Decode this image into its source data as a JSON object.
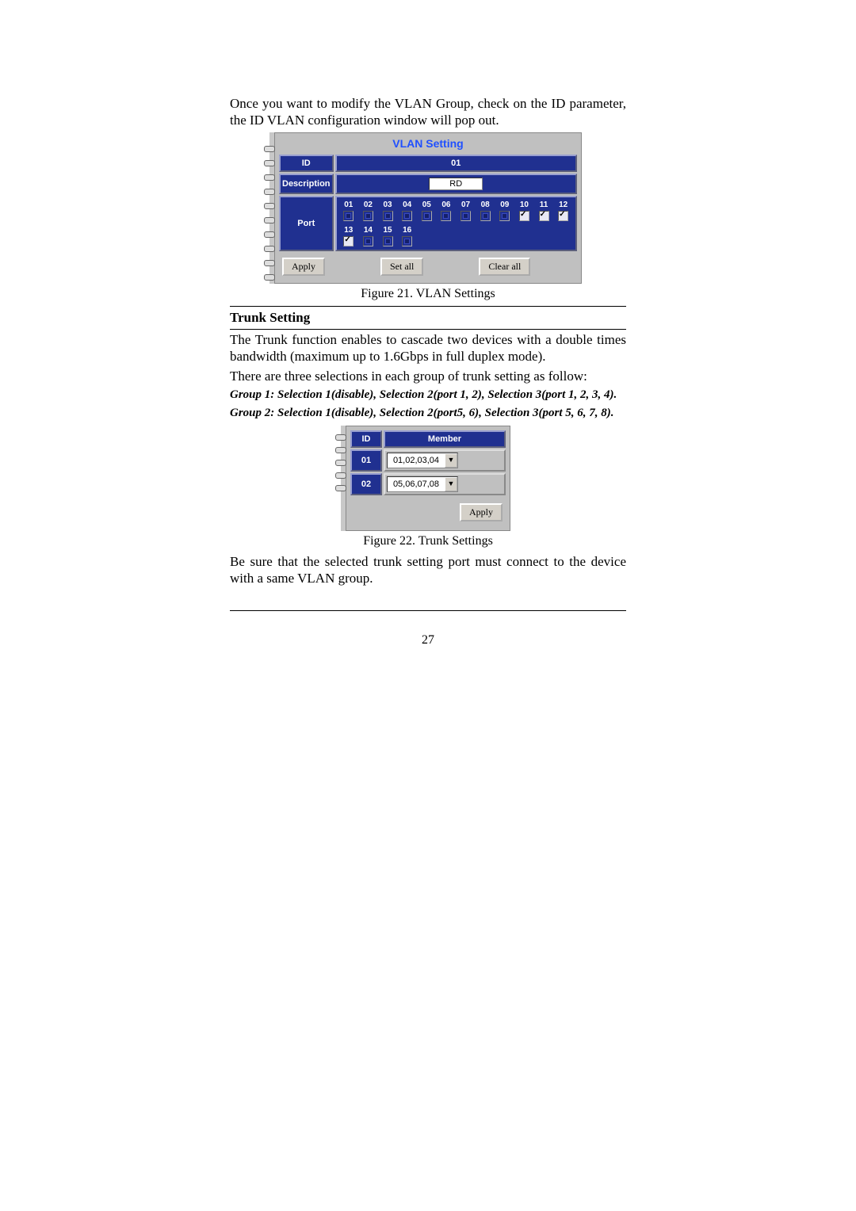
{
  "intro_para": "Once you want to modify the VLAN Group, check on the ID parameter, the ID VLAN configuration window will pop out.",
  "vlan_fig": {
    "title": "VLAN Setting",
    "id_label": "ID",
    "id_value": "01",
    "desc_label": "Description",
    "desc_value": "RD",
    "port_label": "Port",
    "ports_row1": [
      "01",
      "02",
      "03",
      "04",
      "05",
      "06",
      "07",
      "08",
      "09",
      "10",
      "11",
      "12"
    ],
    "ports_row1_state": [
      "sq",
      "sq",
      "sq",
      "sq",
      "sq",
      "sq",
      "sq",
      "sq",
      "sq",
      "on",
      "on",
      "on"
    ],
    "ports_row2": [
      "13",
      "14",
      "15",
      "16"
    ],
    "ports_row2_state": [
      "on",
      "sq",
      "sq",
      "sq"
    ],
    "btn_apply": "Apply",
    "btn_setall": "Set all",
    "btn_clearall": "Clear all"
  },
  "caption1": "Figure 21. VLAN Settings",
  "section_heading": "Trunk Setting",
  "trunk_para1": "The Trunk function enables to cascade two devices with a double times bandwidth (maximum up to 1.6Gbps in full duplex mode).",
  "trunk_para2": "There are three selections in each group of trunk setting as follow:",
  "trunk_group1": "Group 1: Selection 1(disable), Selection 2(port 1, 2), Selection 3(port 1, 2, 3, 4).",
  "trunk_group2": "Group 2: Selection 1(disable), Selection 2(port5, 6), Selection 3(port 5, 6, 7, 8).",
  "trunk_fig": {
    "col_id": "ID",
    "col_member": "Member",
    "rows": [
      {
        "id": "01",
        "member": "01,02,03,04"
      },
      {
        "id": "02",
        "member": "05,06,07,08"
      }
    ],
    "btn_apply": "Apply"
  },
  "caption2": "Figure 22. Trunk Settings",
  "trunk_para3": "Be sure that the selected trunk setting port must connect to the device with a same VLAN group.",
  "page_number": "27",
  "colors": {
    "panel_blue": "#203090",
    "text": "#000000",
    "title_blue": "#2050ff",
    "panel_gray": "#c0c0c0"
  }
}
